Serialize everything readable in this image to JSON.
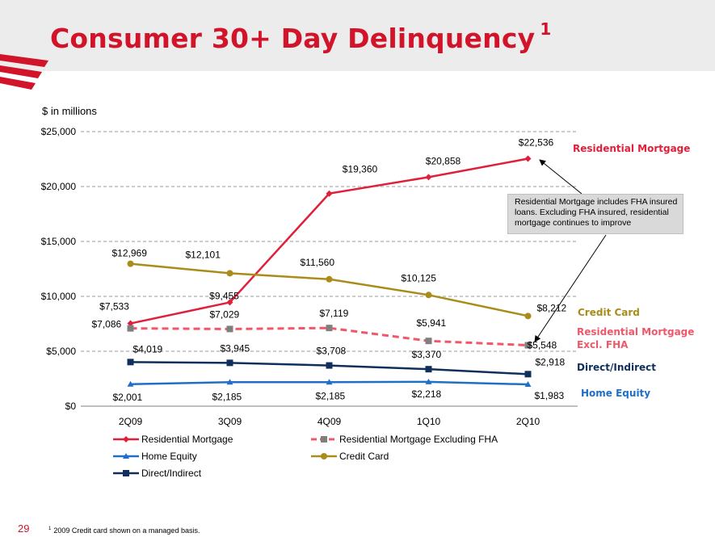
{
  "title": "Consumer 30+ Day Delinquency",
  "title_footnote_marker": "1",
  "units_label": "$ in millions",
  "callout_text": "Residential Mortgage includes FHA insured loans. Excluding FHA insured, residential mortgage continues to improve",
  "page_number": "29",
  "footnote_marker": "1",
  "footnote_text": "2009 Credit card shown on a managed basis.",
  "chart_data": {
    "type": "line",
    "categories": [
      "2Q09",
      "3Q09",
      "4Q09",
      "1Q10",
      "2Q10"
    ],
    "ylim": [
      0,
      25000
    ],
    "yticks": [
      0,
      5000,
      10000,
      15000,
      20000,
      25000
    ],
    "ytick_labels": [
      "$0",
      "$5,000",
      "$10,000",
      "$15,000",
      "$20,000",
      "$25,000"
    ],
    "grid": true,
    "legend_position": "bottom",
    "series": [
      {
        "name": "Residential Mortgage",
        "values": [
          7533,
          9455,
          19360,
          20858,
          22536
        ],
        "labels": [
          "$7,533",
          "$9,455",
          "$19,360",
          "$20,858",
          "$22,536"
        ],
        "color": "#e0203a",
        "marker": "diamond",
        "dash": false,
        "end_label": "Residential Mortgage"
      },
      {
        "name": "Residential Mortgage Excluding FHA",
        "values": [
          7086,
          7029,
          7119,
          5941,
          5548
        ],
        "labels": [
          "$7,086",
          "$7,029",
          "$7,119",
          "$5,941",
          "$5,548"
        ],
        "color": "#f0586a",
        "marker": "square",
        "dash": true,
        "end_label": "Residential Mortgage Excl. FHA",
        "end_label_lines": [
          "Residential Mortgage",
          "Excl. FHA"
        ]
      },
      {
        "name": "Home Equity",
        "values": [
          2001,
          2185,
          2185,
          2218,
          1983
        ],
        "labels": [
          "$2,001",
          "$2,185",
          "$2,185",
          "$2,218",
          "$1,983"
        ],
        "color": "#1f6fc8",
        "marker": "triangle",
        "dash": false,
        "end_label": "Home Equity"
      },
      {
        "name": "Credit Card",
        "values": [
          12969,
          12101,
          11560,
          10125,
          8212
        ],
        "labels": [
          "$12,969",
          "$12,101",
          "$11,560",
          "$10,125",
          "$8,212"
        ],
        "color": "#a98c1a",
        "marker": "circle",
        "dash": false,
        "end_label": "Credit Card"
      },
      {
        "name": "Direct/Indirect",
        "values": [
          4019,
          3945,
          3708,
          3370,
          2918
        ],
        "labels": [
          "$4,019",
          "$3,945",
          "$3,708",
          "$3,370",
          "$2,918"
        ],
        "color": "#102f5c",
        "marker": "square",
        "dash": false,
        "end_label": "Direct/Indirect"
      }
    ]
  }
}
